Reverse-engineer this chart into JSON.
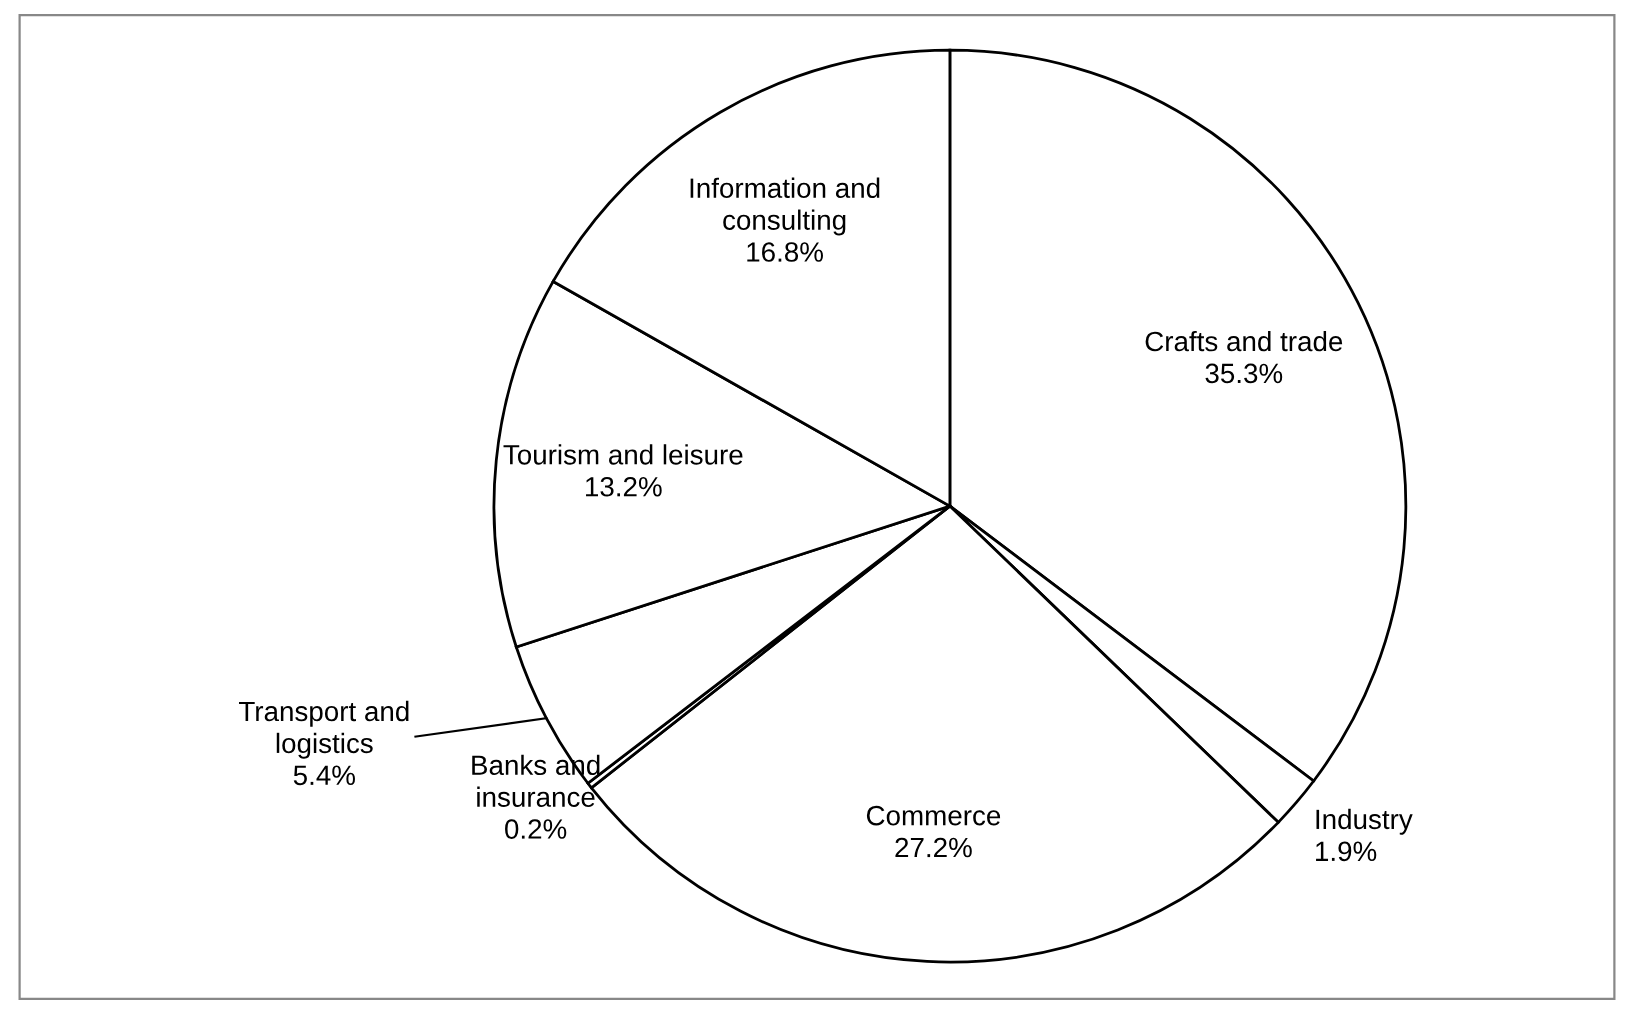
{
  "chart_data": {
    "type": "pie",
    "categories": [
      "Crafts and trade",
      "Industry",
      "Commerce",
      "Banks and insurance",
      "Transport and logistics",
      "Tourism and leisure",
      "Information and consulting"
    ],
    "values": [
      35.3,
      1.9,
      27.2,
      0.2,
      5.4,
      13.2,
      16.8
    ],
    "colors": [
      "#ffffff",
      "#ffffff",
      "#ffffff",
      "#ffffff",
      "#ffffff",
      "#ffffff",
      "#ffffff"
    ],
    "value_labels": [
      "35.3%",
      "1.9%",
      "27.2%",
      "0.2%",
      "5.4%",
      "13.2%",
      "16.8%"
    ],
    "legend": false
  }
}
